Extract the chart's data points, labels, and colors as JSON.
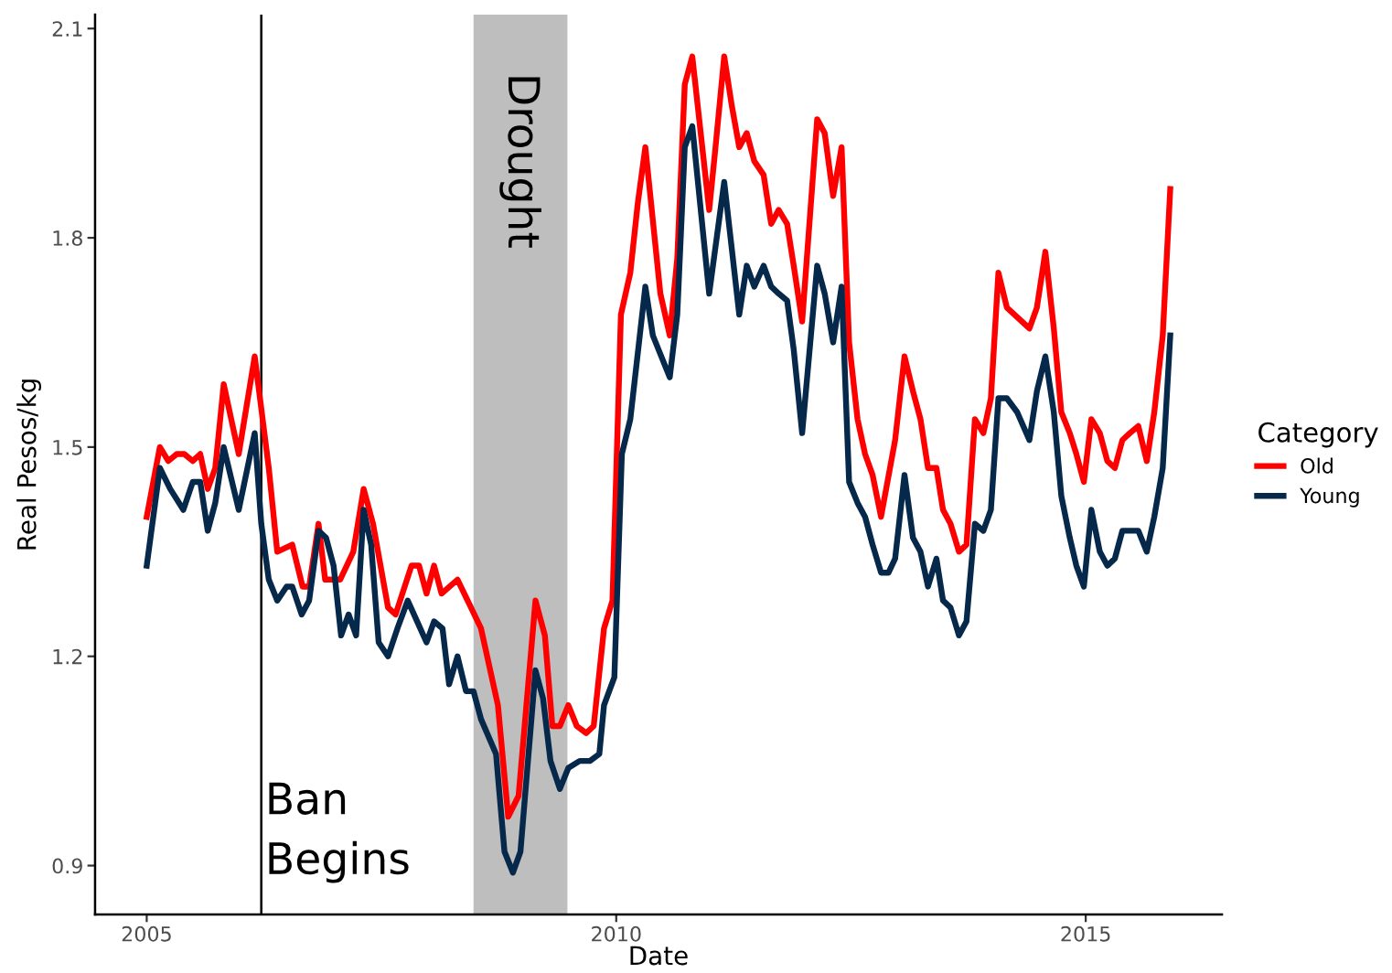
{
  "chart_data": {
    "type": "line",
    "xlabel": "Date",
    "ylabel": "Real Pesos/kg",
    "legend_title": "Category",
    "legend": "right",
    "grid": false,
    "marker": "none",
    "line_style": "solid",
    "xlim": [
      2004.45,
      2016.45
    ],
    "ylim": [
      0.83,
      2.12
    ],
    "xticks": [
      2005,
      2010,
      2015
    ],
    "yticks": [
      0.9,
      1.2,
      1.5,
      1.8,
      2.1
    ],
    "ref_lines": [
      {
        "axis": "x",
        "value": 2006.22,
        "label": "Ban\nBegins",
        "color": "#000000",
        "line_style": "solid"
      }
    ],
    "bands": [
      {
        "axis": "x",
        "from": 2008.48,
        "to": 2009.48,
        "label": "Drought",
        "color": "#bebebe"
      }
    ],
    "series": [
      {
        "name": "Old",
        "color": "#ff0000",
        "x": [
          2005.0,
          2005.14,
          2005.23,
          2005.32,
          2005.4,
          2005.49,
          2005.57,
          2005.65,
          2005.73,
          2005.82,
          2005.98,
          2006.15,
          2006.3,
          2006.39,
          2006.55,
          2006.66,
          2006.73,
          2006.83,
          2006.9,
          2007.06,
          2007.2,
          2007.31,
          2007.41,
          2007.57,
          2007.65,
          2007.82,
          2007.9,
          2007.98,
          2008.06,
          2008.14,
          2008.31,
          2008.56,
          2008.74,
          2008.85,
          2008.96,
          2009.14,
          2009.24,
          2009.32,
          2009.4,
          2009.49,
          2009.58,
          2009.68,
          2009.76,
          2009.87,
          2009.96,
          2010.05,
          2010.15,
          2010.23,
          2010.31,
          2010.47,
          2010.57,
          2010.65,
          2010.73,
          2010.81,
          2010.99,
          2011.05,
          2011.15,
          2011.23,
          2011.31,
          2011.39,
          2011.47,
          2011.57,
          2011.65,
          2011.73,
          2011.82,
          2011.89,
          2011.98,
          2012.14,
          2012.22,
          2012.31,
          2012.4,
          2012.48,
          2012.57,
          2012.65,
          2012.73,
          2012.82,
          2012.97,
          2013.07,
          2013.16,
          2013.24,
          2013.32,
          2013.41,
          2013.48,
          2013.56,
          2013.65,
          2013.73,
          2013.82,
          2013.91,
          2013.99,
          2014.07,
          2014.16,
          2014.4,
          2014.48,
          2014.57,
          2014.66,
          2014.74,
          2014.83,
          2014.9,
          2014.98,
          2015.06,
          2015.15,
          2015.23,
          2015.31,
          2015.39,
          2015.47,
          2015.56,
          2015.65,
          2015.73,
          2015.82,
          2015.9
        ],
        "values": [
          1.4,
          1.5,
          1.48,
          1.49,
          1.49,
          1.48,
          1.49,
          1.44,
          1.47,
          1.59,
          1.49,
          1.63,
          1.47,
          1.35,
          1.36,
          1.3,
          1.3,
          1.39,
          1.31,
          1.31,
          1.35,
          1.44,
          1.39,
          1.27,
          1.26,
          1.33,
          1.33,
          1.29,
          1.33,
          1.29,
          1.31,
          1.24,
          1.13,
          0.97,
          1.0,
          1.28,
          1.23,
          1.1,
          1.1,
          1.13,
          1.1,
          1.09,
          1.1,
          1.24,
          1.28,
          1.69,
          1.75,
          1.85,
          1.93,
          1.72,
          1.66,
          1.77,
          2.02,
          2.06,
          1.84,
          1.92,
          2.06,
          1.99,
          1.93,
          1.95,
          1.91,
          1.89,
          1.82,
          1.84,
          1.82,
          1.76,
          1.68,
          1.97,
          1.95,
          1.86,
          1.93,
          1.65,
          1.54,
          1.49,
          1.46,
          1.4,
          1.51,
          1.63,
          1.58,
          1.54,
          1.47,
          1.47,
          1.41,
          1.39,
          1.35,
          1.36,
          1.54,
          1.52,
          1.57,
          1.75,
          1.7,
          1.67,
          1.7,
          1.78,
          1.67,
          1.55,
          1.52,
          1.49,
          1.45,
          1.54,
          1.52,
          1.48,
          1.47,
          1.51,
          1.52,
          1.53,
          1.48,
          1.55,
          1.66,
          1.87
        ]
      },
      {
        "name": "Young",
        "color": "#05284b",
        "x": [
          2005.0,
          2005.14,
          2005.25,
          2005.39,
          2005.49,
          2005.57,
          2005.65,
          2005.73,
          2005.82,
          2005.98,
          2006.15,
          2006.22,
          2006.3,
          2006.39,
          2006.49,
          2006.55,
          2006.65,
          2006.73,
          2006.83,
          2006.91,
          2006.99,
          2007.07,
          2007.15,
          2007.23,
          2007.31,
          2007.39,
          2007.47,
          2007.57,
          2007.67,
          2007.78,
          2007.88,
          2007.98,
          2008.06,
          2008.15,
          2008.22,
          2008.31,
          2008.4,
          2008.48,
          2008.56,
          2008.72,
          2008.81,
          2008.9,
          2008.98,
          2009.14,
          2009.22,
          2009.3,
          2009.4,
          2009.49,
          2009.61,
          2009.72,
          2009.82,
          2009.87,
          2009.98,
          2010.06,
          2010.15,
          2010.31,
          2010.39,
          2010.57,
          2010.65,
          2010.73,
          2010.81,
          2010.99,
          2011.15,
          2011.31,
          2011.39,
          2011.47,
          2011.57,
          2011.65,
          2011.73,
          2011.82,
          2011.89,
          2011.98,
          2012.14,
          2012.22,
          2012.31,
          2012.4,
          2012.48,
          2012.57,
          2012.65,
          2012.73,
          2012.82,
          2012.9,
          2012.97,
          2013.07,
          2013.16,
          2013.24,
          2013.32,
          2013.41,
          2013.48,
          2013.56,
          2013.65,
          2013.73,
          2013.82,
          2013.91,
          2013.99,
          2014.07,
          2014.16,
          2014.27,
          2014.4,
          2014.48,
          2014.57,
          2014.66,
          2014.74,
          2014.83,
          2014.9,
          2014.98,
          2015.06,
          2015.15,
          2015.23,
          2015.31,
          2015.39,
          2015.56,
          2015.65,
          2015.73,
          2015.82,
          2015.9
        ],
        "values": [
          1.33,
          1.47,
          1.44,
          1.41,
          1.45,
          1.45,
          1.38,
          1.42,
          1.5,
          1.41,
          1.52,
          1.39,
          1.31,
          1.28,
          1.3,
          1.3,
          1.26,
          1.28,
          1.38,
          1.37,
          1.33,
          1.23,
          1.26,
          1.23,
          1.41,
          1.36,
          1.22,
          1.2,
          1.24,
          1.28,
          1.25,
          1.22,
          1.25,
          1.24,
          1.16,
          1.2,
          1.15,
          1.15,
          1.11,
          1.06,
          0.92,
          0.89,
          0.92,
          1.18,
          1.14,
          1.05,
          1.01,
          1.04,
          1.05,
          1.05,
          1.06,
          1.13,
          1.17,
          1.49,
          1.54,
          1.73,
          1.66,
          1.6,
          1.69,
          1.93,
          1.96,
          1.72,
          1.88,
          1.69,
          1.76,
          1.73,
          1.76,
          1.73,
          1.72,
          1.71,
          1.64,
          1.52,
          1.76,
          1.72,
          1.65,
          1.73,
          1.45,
          1.42,
          1.4,
          1.36,
          1.32,
          1.32,
          1.34,
          1.46,
          1.37,
          1.35,
          1.3,
          1.34,
          1.28,
          1.27,
          1.23,
          1.25,
          1.39,
          1.38,
          1.41,
          1.57,
          1.57,
          1.55,
          1.51,
          1.58,
          1.63,
          1.55,
          1.43,
          1.37,
          1.33,
          1.3,
          1.41,
          1.35,
          1.33,
          1.34,
          1.38,
          1.38,
          1.35,
          1.4,
          1.47,
          1.66
        ]
      }
    ]
  }
}
